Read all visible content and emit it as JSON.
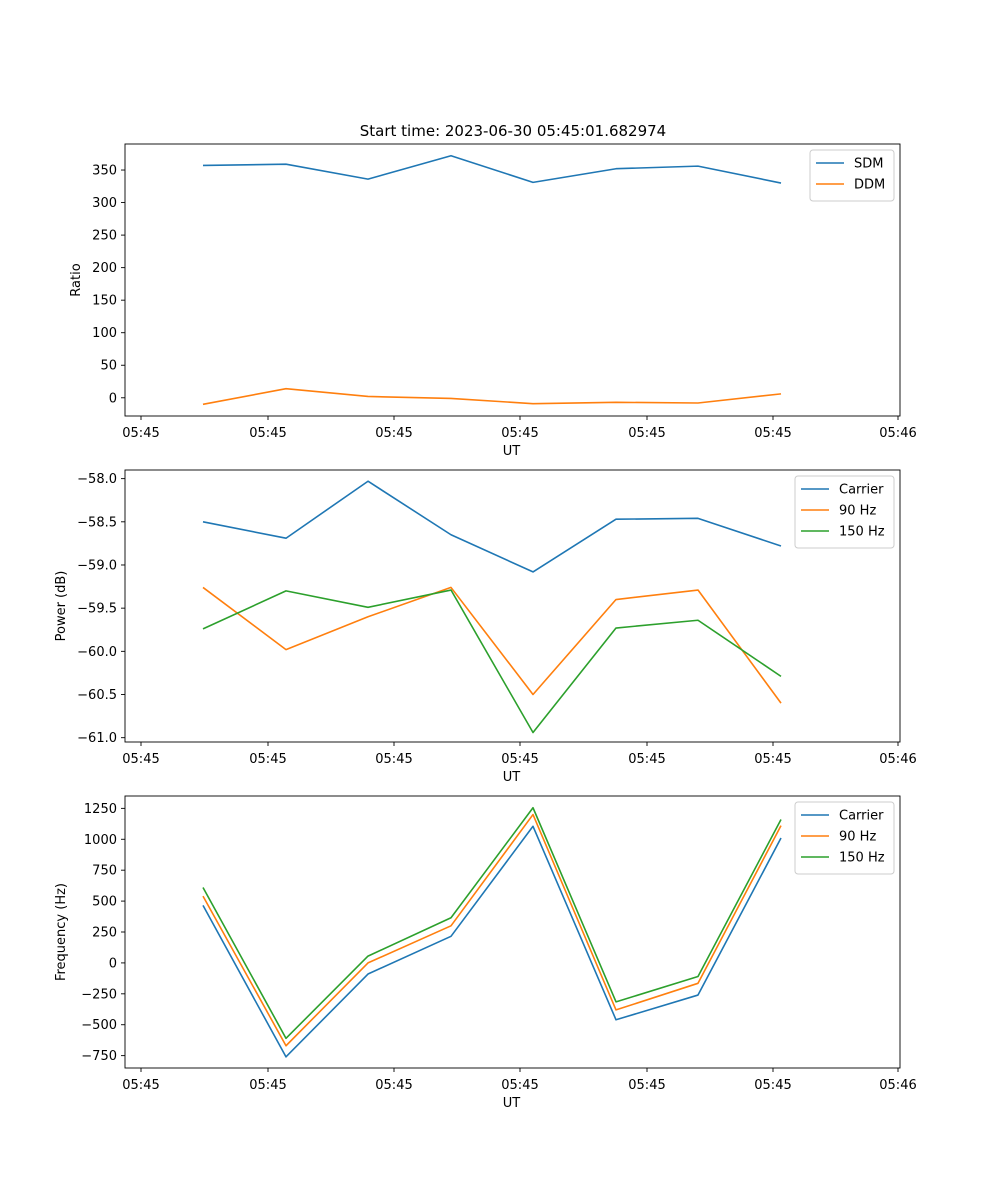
{
  "title": "Start time: 2023-06-30 05:45:01.682974",
  "chart_data": [
    {
      "type": "line",
      "xlabel": "UT",
      "ylabel": "Ratio",
      "x": [
        "05:45",
        "05:45",
        "05:45",
        "05:45",
        "05:45",
        "05:45",
        "05:45",
        "05:45"
      ],
      "x_ticks": [
        "05:45",
        "05:45",
        "05:45",
        "05:45",
        "05:45",
        "05:45",
        "05:46"
      ],
      "y_ticks": [
        "0",
        "50",
        "100",
        "150",
        "200",
        "250",
        "300",
        "350"
      ],
      "ylim": [
        -28,
        390
      ],
      "legend": "top-right",
      "grid": false,
      "series": [
        {
          "name": "SDM",
          "color": "#1f77b4",
          "values": [
            357,
            359,
            336,
            372,
            331,
            352,
            356,
            330
          ]
        },
        {
          "name": "DDM",
          "color": "#ff7f0e",
          "values": [
            -10,
            14,
            2,
            -1,
            -9,
            -7,
            -8,
            6
          ]
        }
      ]
    },
    {
      "type": "line",
      "xlabel": "UT",
      "ylabel": "Power (dB)",
      "x": [
        "05:45",
        "05:45",
        "05:45",
        "05:45",
        "05:45",
        "05:45",
        "05:45",
        "05:45"
      ],
      "x_ticks": [
        "05:45",
        "05:45",
        "05:45",
        "05:45",
        "05:45",
        "05:45",
        "05:46"
      ],
      "y_ticks": [
        "−61.0",
        "−60.5",
        "−60.0",
        "−59.5",
        "−59.0",
        "−58.5",
        "−58.0"
      ],
      "ylim": [
        -61.05,
        -57.9
      ],
      "legend": "top-right",
      "grid": false,
      "series": [
        {
          "name": "Carrier",
          "color": "#1f77b4",
          "values": [
            -58.5,
            -58.69,
            -58.03,
            -58.65,
            -59.08,
            -58.47,
            -58.46,
            -58.78
          ]
        },
        {
          "name": "90 Hz",
          "color": "#ff7f0e",
          "values": [
            -59.26,
            -59.98,
            -59.6,
            -59.26,
            -60.5,
            -59.4,
            -59.29,
            -60.6
          ]
        },
        {
          "name": "150 Hz",
          "color": "#2ca02c",
          "values": [
            -59.74,
            -59.3,
            -59.49,
            -59.29,
            -60.94,
            -59.73,
            -59.64,
            -60.29
          ]
        }
      ]
    },
    {
      "type": "line",
      "xlabel": "UT",
      "ylabel": "Frequency (Hz)",
      "x": [
        "05:45",
        "05:45",
        "05:45",
        "05:45",
        "05:45",
        "05:45",
        "05:45",
        "05:45"
      ],
      "x_ticks": [
        "05:45",
        "05:45",
        "05:45",
        "05:45",
        "05:45",
        "05:45",
        "05:46"
      ],
      "y_ticks": [
        "−750",
        "−500",
        "−250",
        "0",
        "250",
        "500",
        "750",
        "1000",
        "1250"
      ],
      "ylim": [
        -850,
        1350
      ],
      "legend": "top-right",
      "grid": false,
      "series": [
        {
          "name": "Carrier",
          "color": "#1f77b4",
          "values": [
            465,
            -760,
            -90,
            215,
            1105,
            -460,
            -260,
            1010
          ]
        },
        {
          "name": "90 Hz",
          "color": "#ff7f0e",
          "values": [
            540,
            -670,
            0,
            300,
            1200,
            -380,
            -165,
            1110
          ]
        },
        {
          "name": "150 Hz",
          "color": "#2ca02c",
          "values": [
            610,
            -610,
            55,
            365,
            1255,
            -315,
            -110,
            1160
          ]
        }
      ]
    }
  ]
}
